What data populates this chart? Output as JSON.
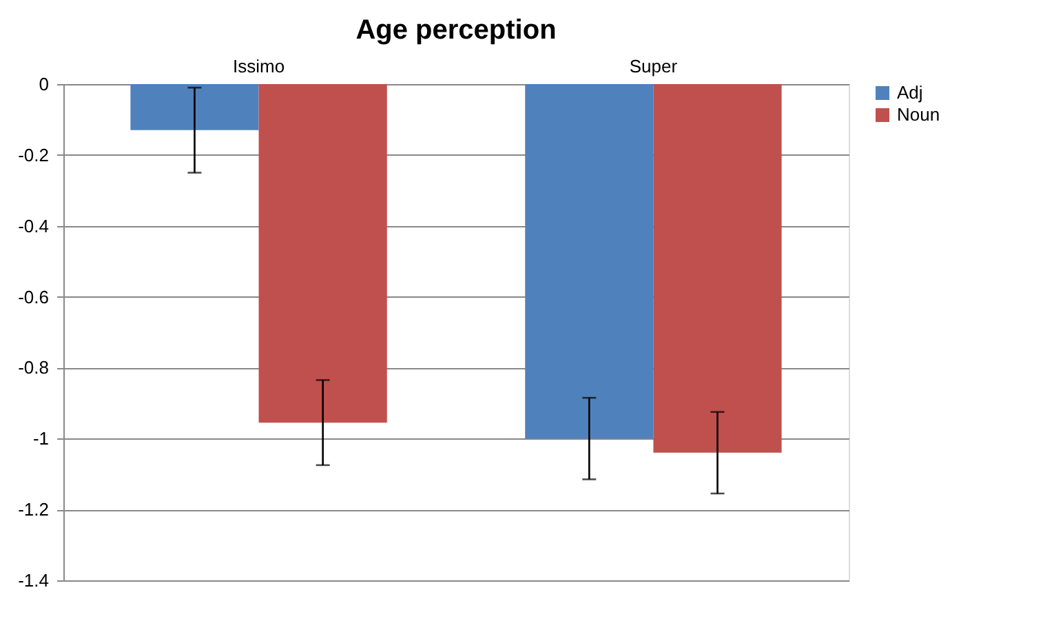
{
  "chart_data": {
    "type": "bar",
    "title": "Age perception",
    "categories": [
      "Issimo",
      "Super"
    ],
    "series": [
      {
        "name": "Adj",
        "color": "#4f81bd",
        "values": [
          -0.13,
          -1.0
        ],
        "errors": [
          0.12,
          0.115
        ]
      },
      {
        "name": "Noun",
        "color": "#c0504d",
        "values": [
          -0.955,
          -1.04
        ],
        "errors": [
          0.12,
          0.115
        ]
      }
    ],
    "ylim": [
      -1.4,
      0
    ],
    "yticks": [
      0,
      -0.2,
      -0.4,
      -0.6,
      -0.8,
      -1,
      -1.2,
      -1.4
    ],
    "grid": "y",
    "legend": "right"
  }
}
